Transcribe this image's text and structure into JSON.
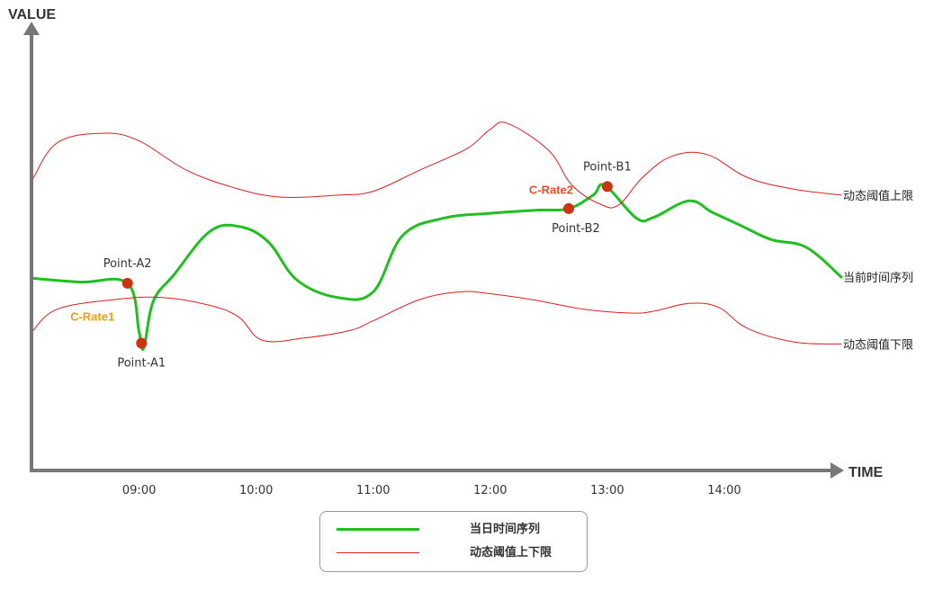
{
  "chart_data": {
    "type": "line",
    "ylabel": "VALUE",
    "xlabel": "TIME",
    "x_ticks": [
      "09:00",
      "10:00",
      "11:00",
      "12:00",
      "13:00",
      "14:00"
    ],
    "x_range": [
      8.08,
      15.0
    ],
    "y_range": [
      0,
      100
    ],
    "grid": false,
    "legend_position": "bottom-center",
    "series": [
      {
        "key": "current",
        "color": "#1fbf1f",
        "end_label": "当前时间序列",
        "legend_label": "当日时间序列",
        "points": [
          [
            8.08,
            49
          ],
          [
            8.5,
            48
          ],
          [
            8.9,
            47.7
          ],
          [
            9.0,
            35
          ],
          [
            9.04,
            31
          ],
          [
            9.12,
            43
          ],
          [
            9.3,
            50
          ],
          [
            9.6,
            61
          ],
          [
            9.85,
            62.4
          ],
          [
            10.1,
            58.5
          ],
          [
            10.35,
            48.5
          ],
          [
            10.7,
            44
          ],
          [
            11.0,
            45.5
          ],
          [
            11.25,
            60
          ],
          [
            11.6,
            64.5
          ],
          [
            12.0,
            65.8
          ],
          [
            12.4,
            66.6
          ],
          [
            12.67,
            67
          ],
          [
            12.88,
            70.5
          ],
          [
            12.98,
            73
          ],
          [
            13.25,
            64.5
          ],
          [
            13.4,
            64.8
          ],
          [
            13.7,
            69
          ],
          [
            13.9,
            66
          ],
          [
            14.15,
            62.5
          ],
          [
            14.4,
            59
          ],
          [
            14.7,
            57
          ],
          [
            15.0,
            49.3
          ]
        ]
      },
      {
        "key": "upper",
        "color": "#dd1e1e",
        "end_label": "动态阈值上限",
        "legend_label": "动态阈值上下限",
        "points": [
          [
            8.08,
            74
          ],
          [
            8.3,
            84
          ],
          [
            8.7,
            86.5
          ],
          [
            9.0,
            84.5
          ],
          [
            9.4,
            77
          ],
          [
            9.8,
            72.5
          ],
          [
            10.2,
            70
          ],
          [
            10.7,
            70.5
          ],
          [
            11.0,
            71.5
          ],
          [
            11.4,
            77
          ],
          [
            11.8,
            82.5
          ],
          [
            12.0,
            87.5
          ],
          [
            12.15,
            89
          ],
          [
            12.5,
            82
          ],
          [
            12.7,
            73
          ],
          [
            12.95,
            68
          ],
          [
            13.1,
            68
          ],
          [
            13.3,
            75
          ],
          [
            13.55,
            80.5
          ],
          [
            13.85,
            81
          ],
          [
            14.2,
            75
          ],
          [
            14.6,
            72
          ],
          [
            15.0,
            70.5
          ]
        ]
      },
      {
        "key": "lower",
        "color": "#dd1e1e",
        "end_label": "动态阈值下限",
        "points": [
          [
            8.08,
            35
          ],
          [
            8.3,
            41
          ],
          [
            8.8,
            43.5
          ],
          [
            9.2,
            44
          ],
          [
            9.6,
            42
          ],
          [
            9.85,
            39
          ],
          [
            10.05,
            33
          ],
          [
            10.4,
            33.5
          ],
          [
            10.8,
            35.5
          ],
          [
            11.0,
            38
          ],
          [
            11.4,
            43.5
          ],
          [
            11.75,
            45.5
          ],
          [
            12.0,
            45
          ],
          [
            12.35,
            43.5
          ],
          [
            12.8,
            41
          ],
          [
            13.2,
            40
          ],
          [
            13.4,
            40.5
          ],
          [
            13.7,
            42.5
          ],
          [
            13.95,
            41.5
          ],
          [
            14.2,
            36
          ],
          [
            14.6,
            32.5
          ],
          [
            15.0,
            32
          ]
        ]
      }
    ],
    "points": [
      {
        "name": "Point-A2",
        "x": 8.9,
        "y": 47.7,
        "label_side": "above"
      },
      {
        "name": "Point-A1",
        "x": 9.02,
        "y": 32.2,
        "label_side": "below"
      },
      {
        "name": "Point-B2",
        "x": 12.67,
        "y": 67,
        "label_side": "below"
      },
      {
        "name": "Point-B1",
        "x": 13.0,
        "y": 72.7,
        "label_side": "above"
      }
    ],
    "annotations": [
      {
        "text": "C-Rate1",
        "color": "#f0a000",
        "x": 8.6,
        "y": 38
      },
      {
        "text": "C-Rate2",
        "color": "#e8502a",
        "x": 12.52,
        "y": 70.8
      }
    ]
  }
}
